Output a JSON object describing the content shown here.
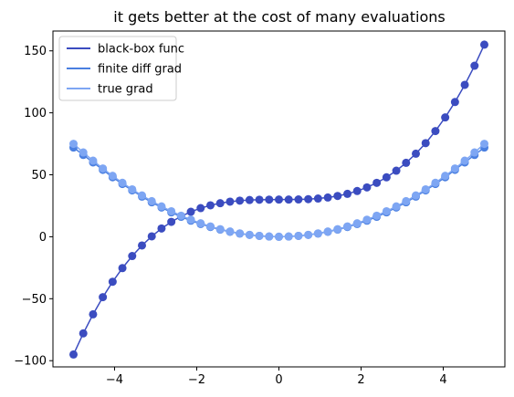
{
  "chart_data": {
    "type": "line",
    "title": "it gets better at the cost of many evaluations",
    "xlabel": "",
    "ylabel": "",
    "xlim": [
      -5.5,
      5.5
    ],
    "ylim": [
      -105,
      166
    ],
    "xticks": [
      -4,
      -2,
      0,
      2,
      4
    ],
    "yticks": [
      -100,
      -50,
      0,
      50,
      100,
      150
    ],
    "grid": false,
    "legend": "top-left",
    "x": [
      -5.0,
      -4.7619,
      -4.5238,
      -4.2857,
      -4.0476,
      -3.8095,
      -3.5714,
      -3.3333,
      -3.0952,
      -2.8571,
      -2.619,
      -2.381,
      -2.1429,
      -1.9048,
      -1.6667,
      -1.4286,
      -1.1905,
      -0.9524,
      -0.7143,
      -0.4762,
      -0.2381,
      0.0,
      0.2381,
      0.4762,
      0.7143,
      0.9524,
      1.1905,
      1.4286,
      1.6667,
      1.9048,
      2.1429,
      2.381,
      2.619,
      2.8571,
      3.0952,
      3.3333,
      3.5714,
      3.8095,
      4.0476,
      4.2857,
      4.5238,
      4.7619,
      5.0
    ],
    "series": [
      {
        "name": "black-box func",
        "color": "#3b4cc0",
        "values": [
          -95.0,
          -77.98,
          -62.58,
          -48.72,
          -36.31,
          -25.29,
          -15.55,
          -7.04,
          0.35,
          6.68,
          12.03,
          16.5,
          20.16,
          23.09,
          25.37,
          27.09,
          28.31,
          29.14,
          29.64,
          29.89,
          29.99,
          30.0,
          30.01,
          30.11,
          30.36,
          30.86,
          31.69,
          32.92,
          34.63,
          36.91,
          39.84,
          43.5,
          47.96,
          53.32,
          59.65,
          67.04,
          75.55,
          85.29,
          96.31,
          108.72,
          122.58,
          137.98,
          155.0
        ]
      },
      {
        "name": "finite diff grad",
        "color": "#4a7fe0",
        "values": [
          72.0,
          66.0,
          60.0,
          54.0,
          48.0,
          42.6,
          37.4,
          32.4,
          27.8,
          23.6,
          19.7,
          16.1,
          13.0,
          10.3,
          7.9,
          5.8,
          4.0,
          2.6,
          1.5,
          0.7,
          0.2,
          0.0,
          0.2,
          0.7,
          1.5,
          2.6,
          4.0,
          5.8,
          7.9,
          10.3,
          13.0,
          16.1,
          19.7,
          23.6,
          27.8,
          32.4,
          37.4,
          42.6,
          48.0,
          54.0,
          60.0,
          66.0,
          72.0
        ]
      },
      {
        "name": "true grad",
        "color": "#7ea6f3",
        "values": [
          75.0,
          68.03,
          61.39,
          55.1,
          49.15,
          43.54,
          38.27,
          33.33,
          28.74,
          24.49,
          20.58,
          17.01,
          13.78,
          10.88,
          8.33,
          6.12,
          4.25,
          2.72,
          1.53,
          0.68,
          0.17,
          0.0,
          0.17,
          0.68,
          1.53,
          2.72,
          4.25,
          6.12,
          8.33,
          10.88,
          13.78,
          17.01,
          20.58,
          24.49,
          28.74,
          33.33,
          38.27,
          43.54,
          49.15,
          55.1,
          61.39,
          68.03,
          75.0
        ]
      }
    ]
  }
}
